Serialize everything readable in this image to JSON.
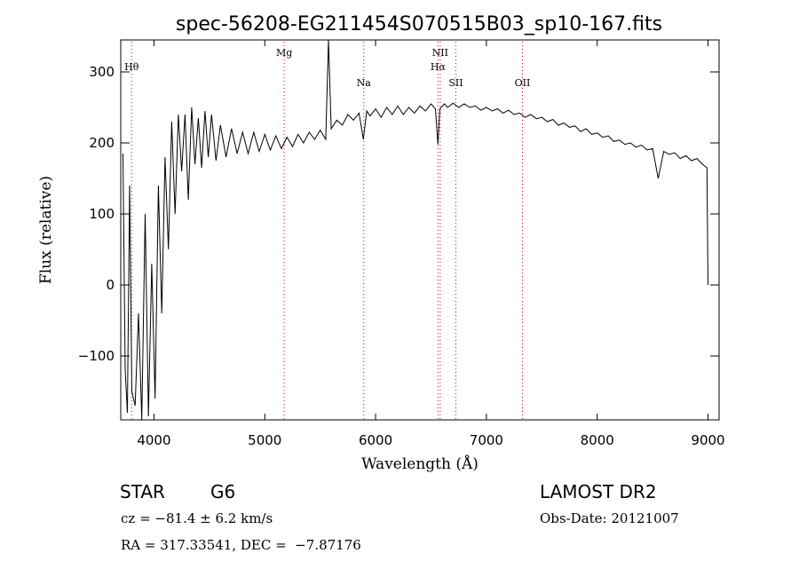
{
  "chart_data": {
    "type": "line",
    "title": "spec-56208-EG211454S070515B03_sp10-167.fits",
    "xlabel": "Wavelength (Å)",
    "ylabel": "Flux (relative)",
    "xlim": [
      3700,
      9100
    ],
    "ylim": [
      -190,
      345
    ],
    "x_ticks": [
      4000,
      5000,
      6000,
      7000,
      8000,
      9000
    ],
    "y_ticks": [
      -100,
      0,
      100,
      200,
      300
    ],
    "grid": false,
    "series": [
      {
        "points": [
          [
            3720,
            185
          ],
          [
            3740,
            -120
          ],
          [
            3760,
            -180
          ],
          [
            3780,
            140
          ],
          [
            3800,
            -150
          ],
          [
            3830,
            -170
          ],
          [
            3860,
            -40
          ],
          [
            3890,
            -190
          ],
          [
            3920,
            100
          ],
          [
            3950,
            -185
          ],
          [
            3980,
            30
          ],
          [
            4010,
            -160
          ],
          [
            4040,
            140
          ],
          [
            4070,
            -40
          ],
          [
            4100,
            180
          ],
          [
            4130,
            50
          ],
          [
            4160,
            230
          ],
          [
            4190,
            100
          ],
          [
            4220,
            240
          ],
          [
            4250,
            160
          ],
          [
            4280,
            240
          ],
          [
            4310,
            120
          ],
          [
            4340,
            250
          ],
          [
            4370,
            170
          ],
          [
            4400,
            235
          ],
          [
            4430,
            165
          ],
          [
            4460,
            245
          ],
          [
            4490,
            180
          ],
          [
            4520,
            240
          ],
          [
            4560,
            175
          ],
          [
            4600,
            225
          ],
          [
            4650,
            180
          ],
          [
            4700,
            220
          ],
          [
            4750,
            185
          ],
          [
            4800,
            215
          ],
          [
            4850,
            185
          ],
          [
            4900,
            215
          ],
          [
            4950,
            188
          ],
          [
            5000,
            212
          ],
          [
            5050,
            190
          ],
          [
            5100,
            210
          ],
          [
            5150,
            192
          ],
          [
            5200,
            208
          ],
          [
            5250,
            195
          ],
          [
            5300,
            212
          ],
          [
            5350,
            200
          ],
          [
            5400,
            215
          ],
          [
            5450,
            205
          ],
          [
            5500,
            218
          ],
          [
            5550,
            205
          ],
          [
            5575,
            345
          ],
          [
            5600,
            220
          ],
          [
            5650,
            232
          ],
          [
            5700,
            225
          ],
          [
            5750,
            240
          ],
          [
            5800,
            232
          ],
          [
            5850,
            242
          ],
          [
            5890,
            205
          ],
          [
            5920,
            245
          ],
          [
            5950,
            238
          ],
          [
            6000,
            248
          ],
          [
            6050,
            236
          ],
          [
            6100,
            250
          ],
          [
            6150,
            240
          ],
          [
            6200,
            252
          ],
          [
            6250,
            240
          ],
          [
            6300,
            250
          ],
          [
            6350,
            242
          ],
          [
            6400,
            252
          ],
          [
            6450,
            245
          ],
          [
            6500,
            255
          ],
          [
            6540,
            248
          ],
          [
            6563,
            198
          ],
          [
            6580,
            248
          ],
          [
            6620,
            255
          ],
          [
            6650,
            250
          ],
          [
            6700,
            256
          ],
          [
            6750,
            250
          ],
          [
            6800,
            255
          ],
          [
            6850,
            250
          ],
          [
            6900,
            252
          ],
          [
            6950,
            246
          ],
          [
            7000,
            250
          ],
          [
            7050,
            245
          ],
          [
            7100,
            248
          ],
          [
            7150,
            242
          ],
          [
            7200,
            246
          ],
          [
            7250,
            240
          ],
          [
            7300,
            242
          ],
          [
            7350,
            236
          ],
          [
            7400,
            240
          ],
          [
            7450,
            234
          ],
          [
            7500,
            236
          ],
          [
            7550,
            230
          ],
          [
            7600,
            233
          ],
          [
            7650,
            225
          ],
          [
            7700,
            228
          ],
          [
            7750,
            222
          ],
          [
            7800,
            224
          ],
          [
            7850,
            216
          ],
          [
            7900,
            220
          ],
          [
            7950,
            212
          ],
          [
            8000,
            214
          ],
          [
            8050,
            208
          ],
          [
            8100,
            210
          ],
          [
            8150,
            202
          ],
          [
            8200,
            204
          ],
          [
            8250,
            198
          ],
          [
            8300,
            200
          ],
          [
            8350,
            194
          ],
          [
            8400,
            197
          ],
          [
            8450,
            190
          ],
          [
            8500,
            192
          ],
          [
            8550,
            150
          ],
          [
            8600,
            188
          ],
          [
            8650,
            184
          ],
          [
            8700,
            186
          ],
          [
            8750,
            178
          ],
          [
            8800,
            182
          ],
          [
            8850,
            175
          ],
          [
            8900,
            178
          ],
          [
            8950,
            170
          ],
          [
            8990,
            165
          ],
          [
            9000,
            0
          ]
        ]
      }
    ],
    "lines": [
      {
        "label": "Hθ",
        "x": 3798
      },
      {
        "label": "Mg",
        "x": 5175
      },
      {
        "label": "Na",
        "x": 5893
      },
      {
        "label": "NII",
        "x": 6583
      },
      {
        "label": "Hα",
        "x": 6563
      },
      {
        "label": "SII",
        "x": 6724
      },
      {
        "label": "OII",
        "x": 7325
      }
    ]
  },
  "info": {
    "object_class": "STAR",
    "subclass": "G6",
    "redshift": "cz = −81.4 ± 6.2 km/s",
    "coords": "RA = 317.33541, DEC =  −7.87176",
    "survey": "LAMOST DR2",
    "obs_date": "Obs-Date: 20121007"
  },
  "colors": {
    "spectrum": "#000000",
    "line_markers": "#cc0000"
  }
}
